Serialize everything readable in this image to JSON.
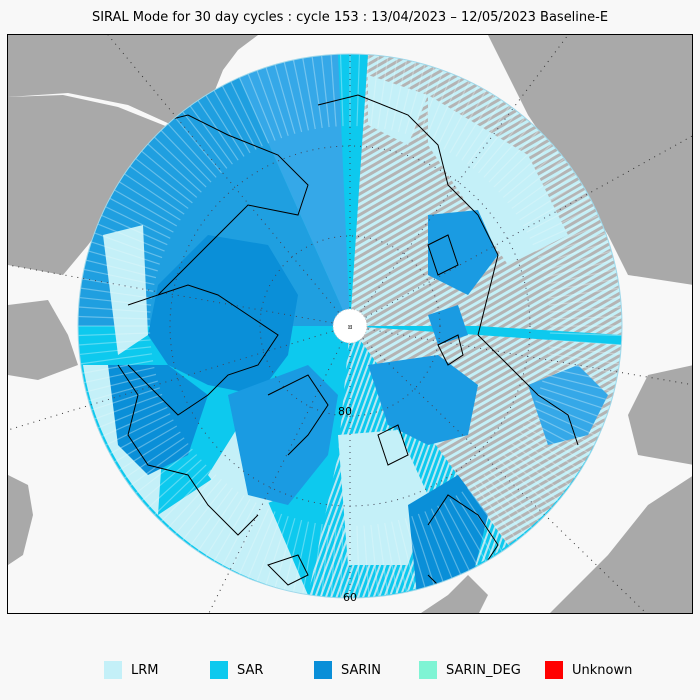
{
  "title": "SIRAL Mode for 30 day cycles : cycle 153 : 13/04/2023 – 12/05/2023 Baseline-E",
  "map": {
    "projection": "north-polar-stereographic",
    "latitude_labels": [
      "80",
      "60"
    ],
    "pole_marker": "¤",
    "colors": {
      "land": "#a9a9a9",
      "ocean": "#f8f8f8",
      "track_gray": "#b4b4b4",
      "coastline": "#000000"
    }
  },
  "legend": [
    {
      "label": "LRM",
      "color": "#c4f0f8"
    },
    {
      "label": "SAR",
      "color": "#0dc9ee"
    },
    {
      "label": "SARIN",
      "color": "#0a8fd8"
    },
    {
      "label": "SARIN_DEG",
      "color": "#7ff4d4"
    },
    {
      "label": "Unknown",
      "color": "#ff0000"
    }
  ]
}
